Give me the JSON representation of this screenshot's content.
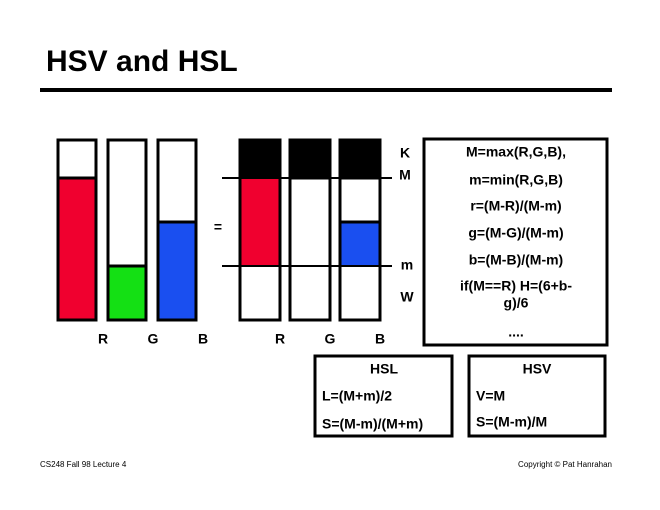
{
  "header": {
    "title": "HSV and HSL"
  },
  "left_diagram": {
    "labels": [
      "R",
      "G",
      "B"
    ],
    "equals": "="
  },
  "right_diagram": {
    "labels": [
      "R",
      "G",
      "B"
    ],
    "levels": [
      "K",
      "M",
      "m",
      "W"
    ]
  },
  "formulas": {
    "lines": [
      "M=max(R,G,B),",
      "m=min(R,G,B)",
      "r=(M-R)/(M-m)",
      "g=(M-G)/(M-m)",
      "b=(M-B)/(M-m)",
      "if(M==R) H=(6+b-",
      "g)/6",
      "...."
    ]
  },
  "hsl": {
    "title": "HSL",
    "lines": [
      "L=(M+m)/2",
      "S=(M-m)/(M+m)"
    ]
  },
  "hsv": {
    "title": "HSV",
    "lines": [
      "V=M",
      "S=(M-m)/M"
    ]
  },
  "footer": {
    "left": "CS248 Fall 98 Lecture 4",
    "right": "Copyright © Pat Hanrahan"
  }
}
